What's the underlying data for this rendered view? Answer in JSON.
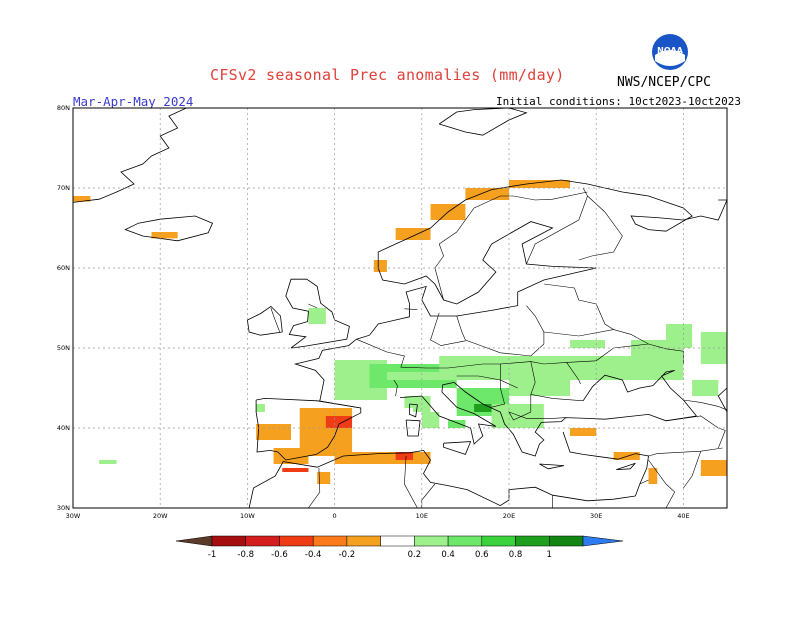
{
  "header": {
    "title": "CFSv2 seasonal Prec anomalies (mm/day)",
    "period": "Mar-Apr-May 2024",
    "initial_conditions": "Initial conditions: 10ct2023-10ct2023",
    "agency": "NWS/NCEP/CPC",
    "logo_text": "NOAA"
  },
  "map": {
    "lat_labels": [
      "80N",
      "70N",
      "60N",
      "50N",
      "40N",
      "30N"
    ],
    "lon_labels": [
      "30W",
      "20W",
      "10W",
      "0",
      "10E",
      "20E",
      "30E",
      "40E"
    ],
    "lat_values": [
      80,
      70,
      60,
      50,
      40,
      30
    ],
    "lon_values": [
      -30,
      -20,
      -10,
      0,
      10,
      20,
      30,
      40
    ],
    "extent": {
      "lon": [
        -30,
        45
      ],
      "lat": [
        30,
        80
      ]
    },
    "grid": true
  },
  "legend": {
    "labels": [
      "-1",
      "-0.8",
      "-0.6",
      "-0.4",
      "-0.2",
      "0.2",
      "0.4",
      "0.6",
      "0.8",
      "1"
    ],
    "colors": [
      "#5b3a29",
      "#a50f0f",
      "#d41e1e",
      "#f03c14",
      "#fb7a1c",
      "#f6a020",
      "#ffffff",
      "#9ef08c",
      "#6ee86a",
      "#3cd23c",
      "#1ea01e",
      "#138513",
      "#2d7cf0"
    ]
  },
  "colors": {
    "title": "#e0403a",
    "period": "#3a3ad0",
    "dry": "#f6a020",
    "very_dry": "#f03c14",
    "wet_light": "#9ef08c",
    "wet_mid": "#6ee86a",
    "wet_strong": "#1ea01e"
  }
}
